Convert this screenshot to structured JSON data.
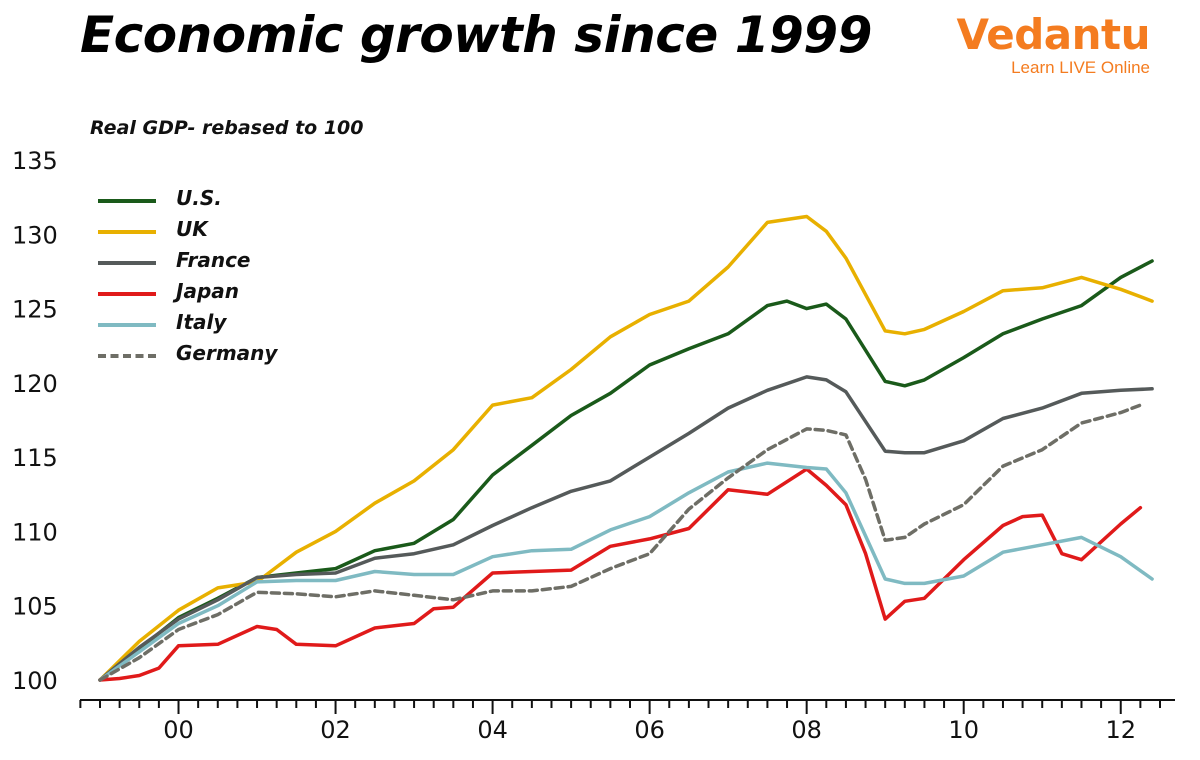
{
  "header": {
    "title": "Economic growth since 1999"
  },
  "logo": {
    "word": "Vedantu",
    "tagline": "Learn LIVE Online",
    "color": "#f47c20"
  },
  "chart_data": {
    "type": "line",
    "title": "Economic growth since 1999",
    "ylabel": "Real GDP- rebased to 100",
    "xlabel": "",
    "ylim": [
      100,
      135
    ],
    "yticks": [
      100,
      105,
      110,
      115,
      120,
      125,
      130,
      135
    ],
    "xlim": [
      1999.0,
      2012.5
    ],
    "xticks": [
      {
        "value": 2000,
        "label": "00"
      },
      {
        "value": 2002,
        "label": "02"
      },
      {
        "value": 2004,
        "label": "04"
      },
      {
        "value": 2006,
        "label": "06"
      },
      {
        "value": 2008,
        "label": "08"
      },
      {
        "value": 2010,
        "label": "10"
      },
      {
        "value": 2012,
        "label": "12"
      }
    ],
    "legend_position": "top-left",
    "series": [
      {
        "name": "U.S.",
        "color": "#1a5a1a",
        "style": "solid",
        "x": [
          1999.0,
          1999.5,
          2000.0,
          2000.5,
          2001.0,
          2001.5,
          2002.0,
          2002.5,
          2003.0,
          2003.5,
          2004.0,
          2004.5,
          2005.0,
          2005.5,
          2006.0,
          2006.5,
          2007.0,
          2007.5,
          2007.75,
          2008.0,
          2008.25,
          2008.5,
          2009.0,
          2009.25,
          2009.5,
          2010.0,
          2010.5,
          2011.0,
          2011.5,
          2012.0,
          2012.4
        ],
        "y": [
          100.0,
          102.1,
          104.2,
          105.5,
          106.9,
          107.2,
          107.5,
          108.7,
          109.2,
          110.8,
          113.8,
          115.8,
          117.8,
          119.3,
          121.2,
          122.3,
          123.3,
          125.2,
          125.5,
          125.0,
          125.3,
          124.3,
          120.1,
          119.8,
          120.2,
          121.7,
          123.3,
          124.3,
          125.2,
          127.1,
          128.2
        ]
      },
      {
        "name": "UK",
        "color": "#e8b000",
        "style": "solid",
        "x": [
          1999.0,
          1999.5,
          2000.0,
          2000.5,
          2001.0,
          2001.5,
          2002.0,
          2002.5,
          2003.0,
          2003.5,
          2004.0,
          2004.5,
          2005.0,
          2005.5,
          2006.0,
          2006.5,
          2007.0,
          2007.5,
          2008.0,
          2008.25,
          2008.5,
          2009.0,
          2009.25,
          2009.5,
          2010.0,
          2010.5,
          2011.0,
          2011.5,
          2012.0,
          2012.4
        ],
        "y": [
          100.0,
          102.6,
          104.7,
          106.2,
          106.6,
          108.6,
          110.0,
          111.9,
          113.4,
          115.5,
          118.5,
          119.0,
          120.9,
          123.1,
          124.6,
          125.5,
          127.8,
          130.8,
          131.2,
          130.2,
          128.4,
          123.5,
          123.3,
          123.6,
          124.8,
          126.2,
          126.4,
          127.1,
          126.3,
          125.5
        ]
      },
      {
        "name": "France",
        "color": "#555a5a",
        "style": "solid",
        "x": [
          1999.0,
          1999.5,
          2000.0,
          2000.5,
          2001.0,
          2001.5,
          2002.0,
          2002.5,
          2003.0,
          2003.5,
          2004.0,
          2004.5,
          2005.0,
          2005.5,
          2006.0,
          2006.5,
          2007.0,
          2007.5,
          2008.0,
          2008.25,
          2008.5,
          2009.0,
          2009.25,
          2009.5,
          2010.0,
          2010.5,
          2011.0,
          2011.5,
          2012.0,
          2012.4
        ],
        "y": [
          100.0,
          102.2,
          104.1,
          105.4,
          106.9,
          107.1,
          107.2,
          108.2,
          108.5,
          109.1,
          110.4,
          111.6,
          112.7,
          113.4,
          115.0,
          116.6,
          118.3,
          119.5,
          120.4,
          120.2,
          119.4,
          115.4,
          115.3,
          115.3,
          116.1,
          117.6,
          118.3,
          119.3,
          119.5,
          119.6
        ]
      },
      {
        "name": "Japan",
        "color": "#e01a1a",
        "style": "solid",
        "x": [
          1999.0,
          1999.25,
          1999.5,
          1999.75,
          2000.0,
          2000.5,
          2001.0,
          2001.25,
          2001.5,
          2002.0,
          2002.5,
          2003.0,
          2003.25,
          2003.5,
          2004.0,
          2004.5,
          2005.0,
          2005.5,
          2006.0,
          2006.5,
          2007.0,
          2007.5,
          2008.0,
          2008.25,
          2008.5,
          2008.75,
          2009.0,
          2009.25,
          2009.5,
          2010.0,
          2010.5,
          2010.75,
          2011.0,
          2011.25,
          2011.5,
          2012.0,
          2012.25
        ],
        "y": [
          100.0,
          100.1,
          100.3,
          100.8,
          102.3,
          102.4,
          103.6,
          103.4,
          102.4,
          102.3,
          103.5,
          103.8,
          104.8,
          104.9,
          107.2,
          107.3,
          107.4,
          109.0,
          109.5,
          110.2,
          112.8,
          112.5,
          114.2,
          113.1,
          111.8,
          108.5,
          104.1,
          105.3,
          105.5,
          108.1,
          110.4,
          111.0,
          111.1,
          108.5,
          108.1,
          110.5,
          111.6
        ]
      },
      {
        "name": "Italy",
        "color": "#7fbac2",
        "style": "solid",
        "x": [
          1999.0,
          1999.5,
          2000.0,
          2000.5,
          2001.0,
          2001.5,
          2002.0,
          2002.5,
          2003.0,
          2003.5,
          2004.0,
          2004.5,
          2005.0,
          2005.5,
          2006.0,
          2006.5,
          2007.0,
          2007.5,
          2008.0,
          2008.25,
          2008.5,
          2009.0,
          2009.25,
          2009.5,
          2010.0,
          2010.5,
          2011.0,
          2011.5,
          2012.0,
          2012.4
        ],
        "y": [
          100.0,
          101.9,
          103.8,
          105.0,
          106.6,
          106.7,
          106.7,
          107.3,
          107.1,
          107.1,
          108.3,
          108.7,
          108.8,
          110.1,
          111.0,
          112.6,
          114.0,
          114.6,
          114.3,
          114.2,
          112.6,
          106.8,
          106.5,
          106.5,
          107.0,
          108.6,
          109.1,
          109.6,
          108.3,
          106.8
        ]
      },
      {
        "name": "Germany",
        "color": "#6e6e66",
        "style": "dashed",
        "x": [
          1999.0,
          1999.5,
          2000.0,
          2000.5,
          2001.0,
          2001.5,
          2002.0,
          2002.5,
          2003.0,
          2003.5,
          2004.0,
          2004.5,
          2005.0,
          2005.5,
          2006.0,
          2006.5,
          2007.0,
          2007.5,
          2008.0,
          2008.25,
          2008.5,
          2008.75,
          2009.0,
          2009.25,
          2009.5,
          2010.0,
          2010.5,
          2011.0,
          2011.5,
          2012.0,
          2012.25
        ],
        "y": [
          100.0,
          101.5,
          103.4,
          104.4,
          105.9,
          105.8,
          105.6,
          106.0,
          105.7,
          105.4,
          106.0,
          106.0,
          106.3,
          107.5,
          108.5,
          111.5,
          113.6,
          115.5,
          116.9,
          116.8,
          116.5,
          113.5,
          109.4,
          109.6,
          110.5,
          111.8,
          114.4,
          115.5,
          117.3,
          118.0,
          118.5
        ]
      }
    ]
  }
}
